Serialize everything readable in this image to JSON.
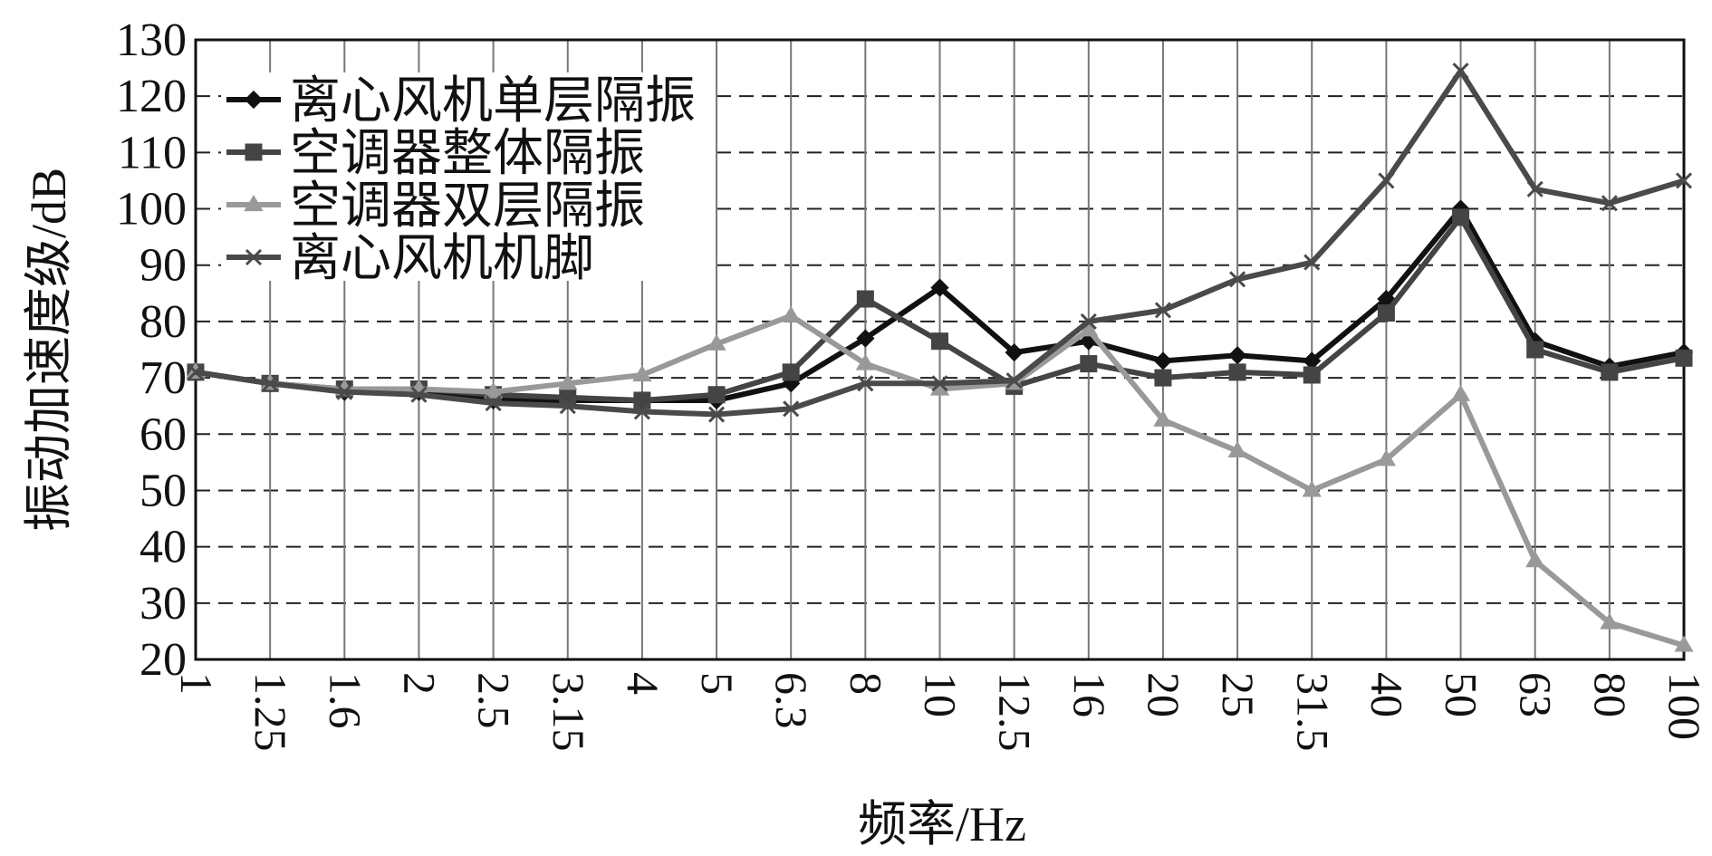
{
  "chart_data": {
    "type": "line",
    "x_label": "频率/Hz",
    "y_label": "振动加速度级/dB",
    "categories": [
      "1",
      "1.25",
      "1.6",
      "2",
      "2.5",
      "3.15",
      "4",
      "5",
      "6.3",
      "8",
      "10",
      "12.5",
      "16",
      "20",
      "25",
      "31.5",
      "40",
      "50",
      "63",
      "80",
      "100"
    ],
    "series": [
      {
        "name": "离心风机单层隔振",
        "color": "#111111",
        "marker": "diamond",
        "values": [
          71,
          69,
          67.5,
          67.5,
          66,
          66,
          66,
          66,
          69,
          77,
          86,
          74.5,
          76.5,
          73,
          74,
          73,
          84,
          100,
          76.5,
          72,
          74.5
        ]
      },
      {
        "name": "空调器整体隔振",
        "color": "#444444",
        "marker": "square",
        "values": [
          71,
          69,
          68,
          68,
          67,
          66.5,
          66,
          67,
          71,
          84,
          76.5,
          68.5,
          72.5,
          70,
          71,
          70.5,
          81.5,
          98.5,
          75,
          71,
          73.5
        ]
      },
      {
        "name": "空调器双层隔振",
        "color": "#999999",
        "marker": "triangle",
        "values": [
          71,
          69,
          68,
          68,
          67.5,
          69,
          70.5,
          76,
          81,
          72.5,
          68,
          69,
          78.5,
          62.5,
          57,
          50,
          55.5,
          67,
          37.5,
          26.5,
          22.5
        ]
      },
      {
        "name": "离心风机机脚",
        "color": "#4a4a4a",
        "marker": "x",
        "values": [
          71,
          69,
          67.5,
          67,
          65.5,
          65,
          64,
          63.5,
          64.5,
          69,
          69,
          69.5,
          80,
          82,
          87.5,
          90.5,
          105,
          124.5,
          103.5,
          101,
          105
        ]
      }
    ],
    "ylim": [
      20,
      130
    ],
    "yticks": [
      20,
      30,
      40,
      50,
      60,
      70,
      80,
      90,
      100,
      110,
      120,
      130
    ],
    "grid": true,
    "legend": "upper left"
  }
}
